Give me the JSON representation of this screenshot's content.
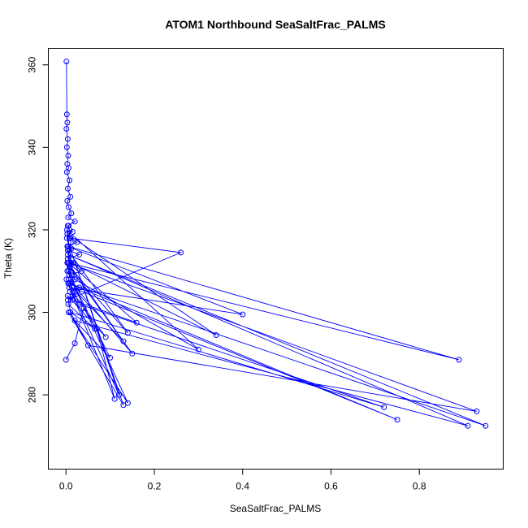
{
  "chart_data": {
    "type": "line",
    "title": "ATOM1 Northbound SeaSaltFrac_PALMS",
    "xlabel": "SeaSaltFrac_PALMS",
    "ylabel": "Theta (K)",
    "xlim": [
      -0.04,
      0.99
    ],
    "ylim": [
      262,
      364
    ],
    "xticks": [
      0,
      0.2,
      0.4,
      0.6,
      0.8
    ],
    "xtick_labels": [
      "0.0",
      "0.2",
      "0.4",
      "0.6",
      "0.8"
    ],
    "yticks": [
      280,
      300,
      320,
      340,
      360
    ],
    "ytick_labels": [
      "280",
      "300",
      "320",
      "340",
      "360"
    ],
    "grid": false,
    "series": [
      {
        "color": "#0000ff",
        "marker": "open-circle",
        "x": [
          0.001,
          0.002,
          0.003,
          0.001,
          0.004,
          0.002,
          0.005,
          0.003,
          0.006,
          0.002,
          0.008,
          0.004,
          0.01,
          0.003,
          0.006,
          0.012,
          0.005,
          0.02,
          0.004,
          0.008,
          0.015,
          0.003,
          0.01,
          0.025,
          0.005,
          0.012,
          0.007,
          0.03,
          0.004,
          0.018,
          0.009,
          0.006,
          0.013,
          0.02,
          0.005,
          0.03,
          0.009,
          0.015,
          0.004,
          0.26,
          0.008,
          0.006,
          0.011,
          0.004,
          0.035,
          0.007,
          0.003,
          0.025,
          0.005,
          0.065,
          0.01,
          0.004,
          0.09,
          0.007,
          0.4,
          0.003,
          0.015,
          0.16,
          0.006,
          0.89,
          0.005,
          0.003,
          0.34,
          0.012,
          0.002,
          0.3,
          0.02,
          0.004,
          0.14,
          0.008,
          0.15,
          0.006,
          0.03,
          0.72,
          0.01,
          0.05,
          0.93,
          0.005,
          0.13,
          0.014,
          0.75,
          0.007,
          0.95,
          0.004,
          0.91,
          0.02,
          0.1,
          0.003,
          0.14,
          0.006,
          0.13,
          0.002,
          0.12,
          0.001,
          0.11,
          0.07,
          0.04,
          0.02,
          0.0
        ],
        "y": [
          360.8,
          348.0,
          346.0,
          344.5,
          342.0,
          340.0,
          338.0,
          336.0,
          335.0,
          334.0,
          332.0,
          330.0,
          328.0,
          327.0,
          325.5,
          324.0,
          323.0,
          322.0,
          321.0,
          320.0,
          319.5,
          319.0,
          318.0,
          317.0,
          316.0,
          315.5,
          315.0,
          314.0,
          313.0,
          312.0,
          311.0,
          310.0,
          309.0,
          308.0,
          307.0,
          306.0,
          305.0,
          304.0,
          303.0,
          314.5,
          318.0,
          321.0,
          317.0,
          313.0,
          310.0,
          309.0,
          312.0,
          305.0,
          302.0,
          296.0,
          300.0,
          304.0,
          294.0,
          306.0,
          299.5,
          316.0,
          303.0,
          297.5,
          312.0,
          288.5,
          316.0,
          319.0,
          294.5,
          312.0,
          320.0,
          291.0,
          308.0,
          315.0,
          295.0,
          311.0,
          290.0,
          308.0,
          302.0,
          277.0,
          300.0,
          292.0,
          276.0,
          312.0,
          293.0,
          306.0,
          274.0,
          307.0,
          272.5,
          314.0,
          272.5,
          298.0,
          289.0,
          310.0,
          278.0,
          300.0,
          277.5,
          318.0,
          280.0,
          308.0,
          279.0,
          296.0,
          301.0,
          292.5,
          288.5
        ]
      }
    ]
  }
}
